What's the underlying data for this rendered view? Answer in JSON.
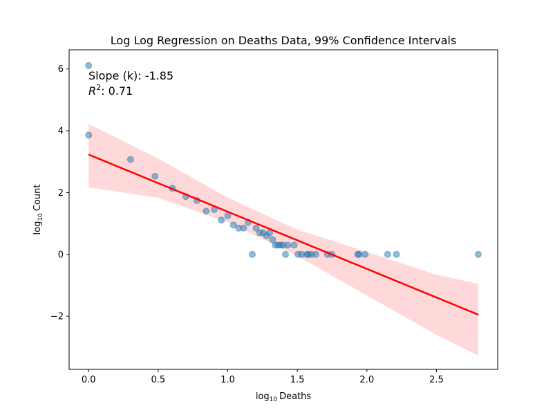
{
  "chart_data": {
    "type": "scatter",
    "title": "Log Log Regression on Deaths Data, 99% Confidence Intervals",
    "xlabel": {
      "base": "log",
      "sub": "10",
      "rest": "Deaths"
    },
    "ylabel": {
      "base": "log",
      "sub": "10",
      "rest": "Count"
    },
    "xlim": [
      -0.14,
      2.94
    ],
    "ylim": [
      -3.72,
      6.62
    ],
    "xticks": [
      0.0,
      0.5,
      1.0,
      1.5,
      2.0,
      2.5
    ],
    "xtick_labels": [
      "0.0",
      "0.5",
      "1.0",
      "1.5",
      "2.0",
      "2.5"
    ],
    "yticks": [
      -2,
      0,
      2,
      4,
      6
    ],
    "ytick_labels": [
      "−2",
      "0",
      "2",
      "4",
      "6"
    ],
    "grid": false,
    "annotation": {
      "slope_text": "Slope (k): -1.85",
      "r2_text": ": 0.71",
      "color": "#0000ff"
    },
    "series": [
      {
        "name": "",
        "kind": "scatter",
        "color": "#1f77b4",
        "points": [
          [
            0.0,
            6.11
          ],
          [
            0.0,
            3.86
          ],
          [
            0.301,
            3.07
          ],
          [
            0.477,
            2.53
          ],
          [
            0.602,
            2.14
          ],
          [
            0.699,
            1.87
          ],
          [
            0.778,
            1.74
          ],
          [
            0.845,
            1.4
          ],
          [
            0.903,
            1.45
          ],
          [
            0.954,
            1.11
          ],
          [
            1.0,
            1.25
          ],
          [
            1.041,
            0.95
          ],
          [
            1.079,
            0.85
          ],
          [
            1.114,
            0.85
          ],
          [
            1.146,
            1.04
          ],
          [
            1.176,
            0.0
          ],
          [
            1.204,
            0.85
          ],
          [
            1.23,
            0.7
          ],
          [
            1.255,
            0.7
          ],
          [
            1.279,
            0.6
          ],
          [
            1.301,
            0.7
          ],
          [
            1.322,
            0.48
          ],
          [
            1.342,
            0.3
          ],
          [
            1.362,
            0.3
          ],
          [
            1.38,
            0.3
          ],
          [
            1.398,
            0.3
          ],
          [
            1.415,
            0.0
          ],
          [
            1.431,
            0.3
          ],
          [
            1.477,
            0.3
          ],
          [
            1.505,
            0.0
          ],
          [
            1.531,
            0.0
          ],
          [
            1.568,
            0.0
          ],
          [
            1.58,
            0.0
          ],
          [
            1.602,
            0.0
          ],
          [
            1.633,
            0.0
          ],
          [
            1.716,
            0.0
          ],
          [
            1.748,
            0.0
          ],
          [
            1.934,
            0.0
          ],
          [
            1.944,
            0.0
          ],
          [
            1.987,
            0.0
          ],
          [
            2.149,
            0.0
          ],
          [
            2.212,
            0.0
          ],
          [
            2.8,
            0.0
          ]
        ]
      },
      {
        "name": "",
        "kind": "regression",
        "color": "#ff0000",
        "x": [
          0.0,
          2.8
        ],
        "y": [
          3.23,
          -1.95
        ]
      },
      {
        "name": "",
        "kind": "confidence_band",
        "color": "#ff0000",
        "x": [
          0.0,
          0.5,
          1.0,
          1.5,
          2.0,
          2.5,
          2.8
        ],
        "upper": [
          4.22,
          3.1,
          1.84,
          0.8,
          0.08,
          -0.66,
          -0.95
        ],
        "lower": [
          2.17,
          1.83,
          1.04,
          -0.05,
          -1.33,
          -2.6,
          -3.27
        ]
      }
    ]
  }
}
